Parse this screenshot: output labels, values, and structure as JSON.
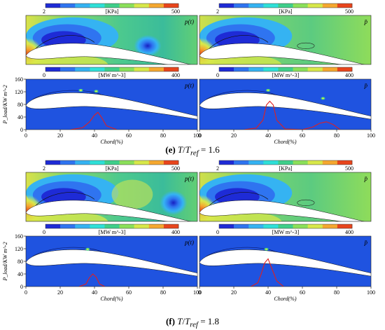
{
  "figure": {
    "groups": [
      {
        "caption": {
          "letter": "(e)",
          "T": "T",
          "T_ref": "T",
          "ref": "ref",
          "value": "= 1.6"
        },
        "pressure_scale": {
          "min": "2",
          "max": "500",
          "unit": "[KPa]"
        },
        "heat_scale": {
          "min": "0",
          "max": "400",
          "unit": "[MW m^-3]"
        },
        "pressure_panels": [
          {
            "tag": "p(t)",
            "case": "instantaneous"
          },
          {
            "tag": "p̄",
            "case": "mean"
          }
        ],
        "heat_panels": [
          {
            "tag": "p(t)",
            "case": "instantaneous"
          },
          {
            "tag": "p̄",
            "case": "mean"
          }
        ],
        "chart_data": [
          {
            "type": "line",
            "panel": "instantaneous",
            "xlabel": "Chord(%)",
            "ylabel": "P_load/KW m^-2",
            "xlim": [
              0,
              100
            ],
            "ylim": [
              0,
              160
            ],
            "xticks": [
              "0",
              "20",
              "40",
              "60",
              "80",
              "100"
            ],
            "yticks": [
              "0",
              "40",
              "80",
              "120",
              "160"
            ],
            "series": [
              {
                "x": [
                  26,
                  33,
                  37,
                  40,
                  42,
                  44,
                  47,
                  53
                ],
                "y": [
                  0,
                  6,
                  24,
                  46,
                  55,
                  40,
                  12,
                  0
                ]
              }
            ]
          },
          {
            "type": "line",
            "panel": "mean",
            "xlabel": "Chord(%)",
            "ylabel": "",
            "xlim": [
              0,
              100
            ],
            "ylim": [
              0,
              160
            ],
            "xticks": [
              "0",
              "20",
              "40",
              "60",
              "80",
              "100"
            ],
            "series": [
              {
                "x": [
                  26,
                  33,
                  37,
                  39,
                  41,
                  43,
                  45,
                  50,
                  60,
                  66,
                  70,
                  74,
                  78,
                  82
                ],
                "y": [
                  0,
                  5,
                  30,
                  78,
                  90,
                  78,
                  30,
                  2,
                  0,
                  8,
                  20,
                  25,
                  16,
                  0
                ]
              }
            ]
          }
        ]
      },
      {
        "caption": {
          "letter": "(f)",
          "T": "T",
          "T_ref": "T",
          "ref": "ref",
          "value": "= 1.8"
        },
        "pressure_scale": {
          "min": "2",
          "max": "500",
          "unit": "[KPa]"
        },
        "heat_scale": {
          "min": "0",
          "max": "400",
          "unit": "[MW m^-3]"
        },
        "pressure_panels": [
          {
            "tag": "p(t)",
            "case": "instantaneous"
          },
          {
            "tag": "p̄",
            "case": "mean"
          }
        ],
        "heat_panels": [
          {
            "tag": "p(t)",
            "case": "instantaneous"
          },
          {
            "tag": "p̄",
            "case": "mean"
          }
        ],
        "chart_data": [
          {
            "type": "line",
            "panel": "instantaneous",
            "xlabel": "Chord(%)",
            "ylabel": "P_load/KW m^-2",
            "xlim": [
              0,
              100
            ],
            "ylim": [
              0,
              160
            ],
            "xticks": [
              "0",
              "20",
              "40",
              "60",
              "80",
              "100"
            ],
            "yticks": [
              "0",
              "40",
              "80",
              "120",
              "160"
            ],
            "series": [
              {
                "x": [
                  31,
                  35,
                  37,
                  39,
                  41,
                  43,
                  46
                ],
                "y": [
                  0,
                  8,
                  28,
                  40,
                  30,
                  8,
                  0
                ]
              }
            ]
          },
          {
            "type": "line",
            "panel": "mean",
            "xlabel": "Chord(%)",
            "ylabel": "",
            "xlim": [
              0,
              100
            ],
            "ylim": [
              0,
              160
            ],
            "xticks": [
              "0",
              "20",
              "40",
              "60",
              "80",
              "100"
            ],
            "series": [
              {
                "x": [
                  30,
                  34,
                  36,
                  38,
                  40,
                  42,
                  45,
                  49
                ],
                "y": [
                  0,
                  12,
                  40,
                  75,
                  88,
                  60,
                  18,
                  0
                ]
              }
            ]
          }
        ]
      }
    ],
    "colors": {
      "scale": [
        "#1e2bd6",
        "#2f74f0",
        "#35b3f2",
        "#2fe0d8",
        "#3fcf8a",
        "#8be05a",
        "#d8e84a",
        "#f5a830",
        "#e8451c"
      ],
      "heat_background": "#1f53e0",
      "pressure_background": "#45c98a",
      "load_curve": "#e02020",
      "airfoil_fill": "#ffffff"
    }
  }
}
